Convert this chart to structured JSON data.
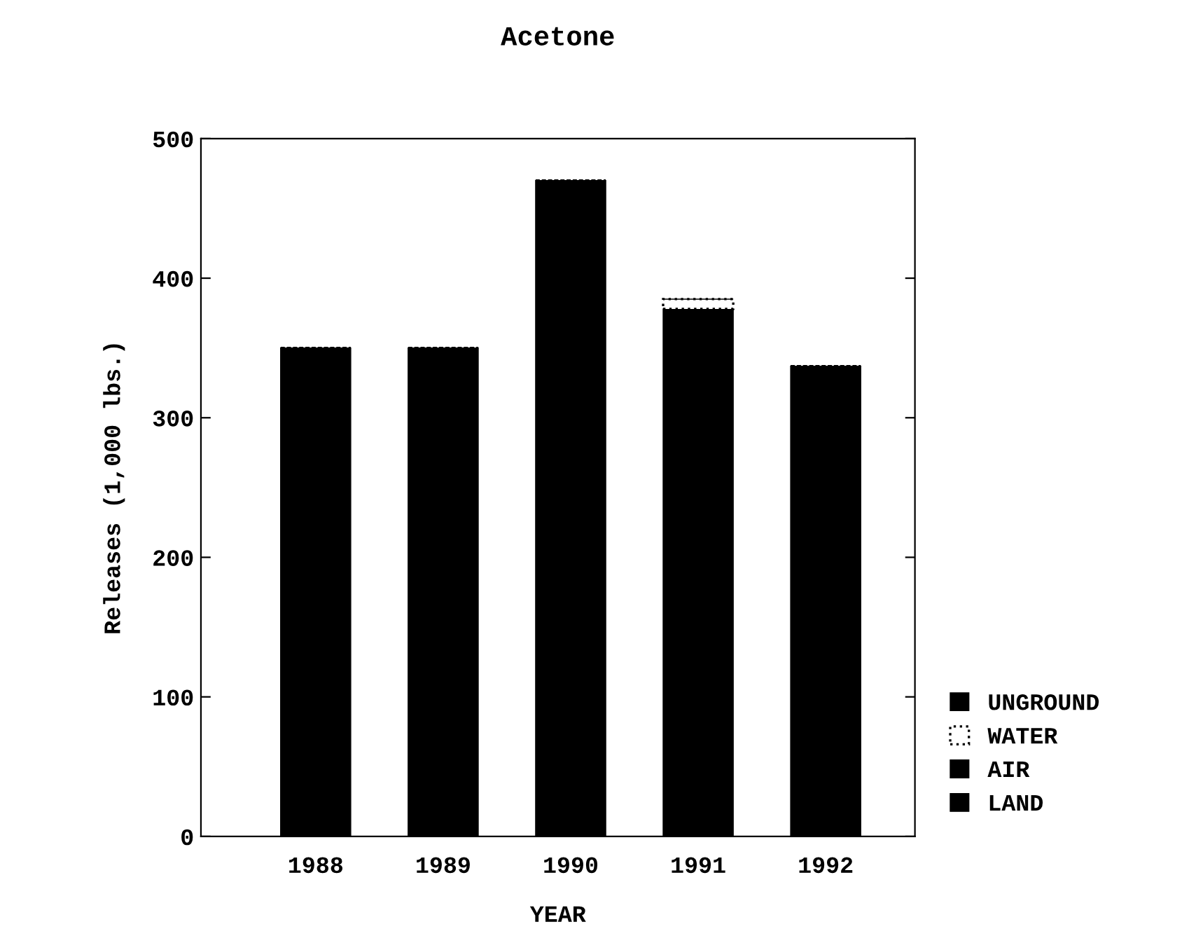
{
  "chart_data": {
    "type": "bar",
    "title": "Acetone",
    "xlabel": "YEAR",
    "ylabel": "Releases (1,000 lbs.)",
    "categories": [
      "1988",
      "1989",
      "1990",
      "1991",
      "1992"
    ],
    "stacked": true,
    "series": [
      {
        "name": "LAND",
        "color": "#000000",
        "values": [
          0,
          0,
          0,
          0,
          0
        ]
      },
      {
        "name": "AIR",
        "color": "#000000",
        "values": [
          350,
          350,
          470,
          378,
          337
        ]
      },
      {
        "name": "WATER",
        "color": "#ffffff",
        "values": [
          0,
          0,
          0,
          7,
          0
        ]
      },
      {
        "name": "UNGROUND",
        "color": "#000000",
        "values": [
          0,
          0,
          0,
          0,
          0
        ]
      }
    ],
    "ylim": [
      0,
      500
    ],
    "yticks": [
      0,
      100,
      200,
      300,
      400,
      500
    ],
    "grid": false,
    "legend": "bottom right"
  }
}
